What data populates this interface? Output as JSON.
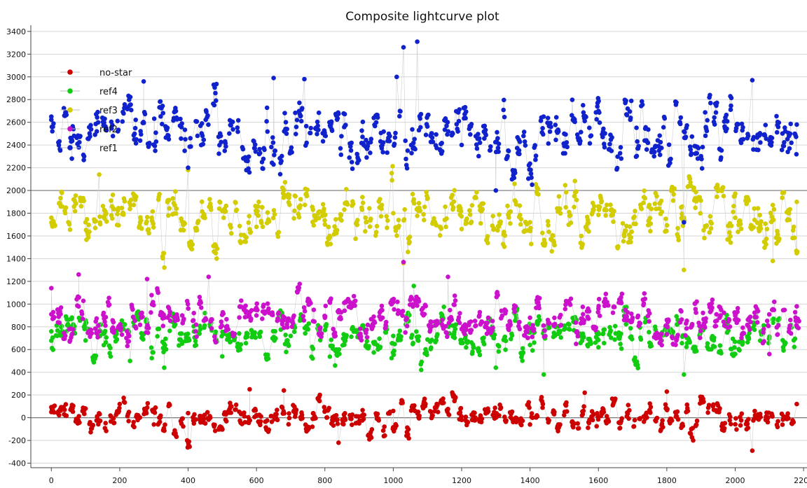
{
  "chart_data": {
    "type": "scatter",
    "title": "Composite lightcurve plot",
    "xlabel": "",
    "ylabel": "",
    "xlim": [
      -60,
      2210
    ],
    "ylim": [
      -440,
      3430
    ],
    "x_ticks": [
      0,
      200,
      400,
      600,
      800,
      1000,
      1200,
      1400,
      1600,
      1800,
      2000,
      2200
    ],
    "y_ticks": [
      -400,
      -200,
      0,
      200,
      400,
      600,
      800,
      1000,
      1200,
      1400,
      1600,
      1800,
      2000,
      2200,
      2400,
      2600,
      2800,
      3000,
      3200,
      3400
    ],
    "grid": true,
    "legend_position": "top-left",
    "x_range": [
      0,
      2180
    ],
    "series": [
      {
        "name": "no-star",
        "color": "#cc0000",
        "mean": 0,
        "spread": 80,
        "sample": [
          [
            0,
            50
          ],
          [
            100,
            80
          ],
          [
            200,
            120
          ],
          [
            300,
            -60
          ],
          [
            400,
            40
          ],
          [
            500,
            -100
          ],
          [
            580,
            250
          ],
          [
            680,
            240
          ],
          [
            840,
            -220
          ],
          [
            1000,
            60
          ],
          [
            1200,
            -20
          ],
          [
            1400,
            -60
          ],
          [
            1560,
            220
          ],
          [
            1800,
            230
          ],
          [
            2050,
            -290
          ],
          [
            2180,
            120
          ]
        ]
      },
      {
        "name": "ref4",
        "color": "#11cc11",
        "mean": 730,
        "spread": 110,
        "sample": [
          [
            0,
            760
          ],
          [
            100,
            680
          ],
          [
            230,
            500
          ],
          [
            330,
            440
          ],
          [
            500,
            540
          ],
          [
            700,
            720
          ],
          [
            830,
            460
          ],
          [
            1000,
            720
          ],
          [
            1060,
            1160
          ],
          [
            1300,
            440
          ],
          [
            1400,
            640
          ],
          [
            1440,
            380
          ],
          [
            1600,
            620
          ],
          [
            1850,
            380
          ],
          [
            2000,
            560
          ],
          [
            2180,
            800
          ]
        ]
      },
      {
        "name": "ref3",
        "color": "#d2cc00",
        "mean": 1760,
        "spread": 150,
        "sample": [
          [
            0,
            1760
          ],
          [
            100,
            1720
          ],
          [
            140,
            2140
          ],
          [
            400,
            2180
          ],
          [
            500,
            1820
          ],
          [
            600,
            1680
          ],
          [
            800,
            1700
          ],
          [
            1000,
            1800
          ],
          [
            1030,
            1360
          ],
          [
            1200,
            1660
          ],
          [
            1400,
            1720
          ],
          [
            1600,
            1860
          ],
          [
            1850,
            1300
          ],
          [
            2000,
            1760
          ],
          [
            2110,
            1380
          ],
          [
            2180,
            1900
          ]
        ]
      },
      {
        "name": "ref2",
        "color": "#cc11cc",
        "mean": 880,
        "spread": 110,
        "sample": [
          [
            0,
            1140
          ],
          [
            80,
            1260
          ],
          [
            280,
            1220
          ],
          [
            460,
            1240
          ],
          [
            600,
            900
          ],
          [
            800,
            880
          ],
          [
            1030,
            1370
          ],
          [
            1160,
            1240
          ],
          [
            1200,
            780
          ],
          [
            1400,
            880
          ],
          [
            1600,
            960
          ],
          [
            1800,
            860
          ],
          [
            2000,
            900
          ],
          [
            2100,
            560
          ],
          [
            2180,
            980
          ]
        ]
      },
      {
        "name": "ref1",
        "color": "#1022cc",
        "mean": 2500,
        "spread": 170,
        "sample": [
          [
            0,
            2650
          ],
          [
            60,
            2280
          ],
          [
            270,
            2960
          ],
          [
            400,
            2200
          ],
          [
            650,
            2990
          ],
          [
            740,
            2980
          ],
          [
            1010,
            3000
          ],
          [
            1030,
            3260
          ],
          [
            1070,
            3310
          ],
          [
            1200,
            2400
          ],
          [
            1300,
            2000
          ],
          [
            1500,
            2500
          ],
          [
            1600,
            2700
          ],
          [
            1850,
            1720
          ],
          [
            2050,
            2970
          ],
          [
            2180,
            2580
          ]
        ]
      }
    ]
  }
}
